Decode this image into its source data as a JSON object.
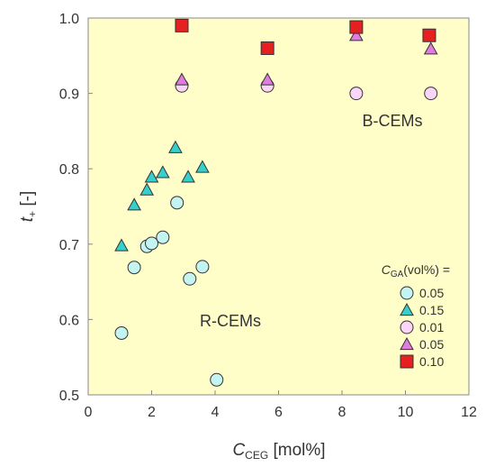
{
  "chart_data": {
    "type": "scatter",
    "xlabel": {
      "main": "C",
      "sub": "CEG",
      "rest": " [mol%]"
    },
    "ylabel": {
      "main": "t",
      "sub": "+",
      "rest": " [-]"
    },
    "xlim": [
      0,
      12
    ],
    "ylim": [
      0.5,
      1.0
    ],
    "xticks": [
      0,
      2,
      4,
      6,
      8,
      10,
      12
    ],
    "yticks": [
      0.5,
      0.6,
      0.7,
      0.8,
      0.9,
      1.0
    ],
    "xtick_labels": [
      "0",
      "2",
      "4",
      "6",
      "8",
      "10",
      "12"
    ],
    "ytick_labels": [
      "0.5",
      "0.6",
      "0.7",
      "0.8",
      "0.9",
      "1.0"
    ],
    "grid": false,
    "plot_background": "#fffdc8",
    "legend": {
      "title_main": "C",
      "title_sub": "GA",
      "title_rest": "(vol%) =",
      "placement": "bottom-right"
    },
    "annotations": [
      "R-CEMs",
      "B-CEMs"
    ],
    "series": [
      {
        "name": "0.05",
        "marker": "circle",
        "color": "#c4f4f2",
        "x": [
          1.05,
          1.45,
          1.85,
          2.0,
          2.35,
          2.8,
          3.2,
          3.6,
          4.05
        ],
        "y": [
          0.582,
          0.669,
          0.697,
          0.701,
          0.709,
          0.755,
          0.654,
          0.67,
          0.52
        ]
      },
      {
        "name": "0.15",
        "marker": "triangle",
        "color": "#35d0cc",
        "x": [
          1.05,
          1.45,
          1.85,
          2.0,
          2.35,
          2.75,
          3.15,
          3.6
        ],
        "y": [
          0.698,
          0.752,
          0.772,
          0.789,
          0.795,
          0.828,
          0.789,
          0.802
        ]
      },
      {
        "name": "0.01",
        "marker": "circle",
        "color": "#f9d6f7",
        "x": [
          2.95,
          5.65,
          8.45,
          10.8
        ],
        "y": [
          0.91,
          0.91,
          0.9,
          0.9
        ]
      },
      {
        "name": "0.05",
        "marker": "triangle",
        "color": "#e07be0",
        "x": [
          2.95,
          5.65,
          8.45,
          10.8
        ],
        "y": [
          0.918,
          0.918,
          0.977,
          0.959
        ]
      },
      {
        "name": "0.10",
        "marker": "square",
        "color": "#e62020",
        "x": [
          2.95,
          5.65,
          8.45,
          10.75
        ],
        "y": [
          0.99,
          0.96,
          0.988,
          0.977
        ]
      }
    ]
  }
}
